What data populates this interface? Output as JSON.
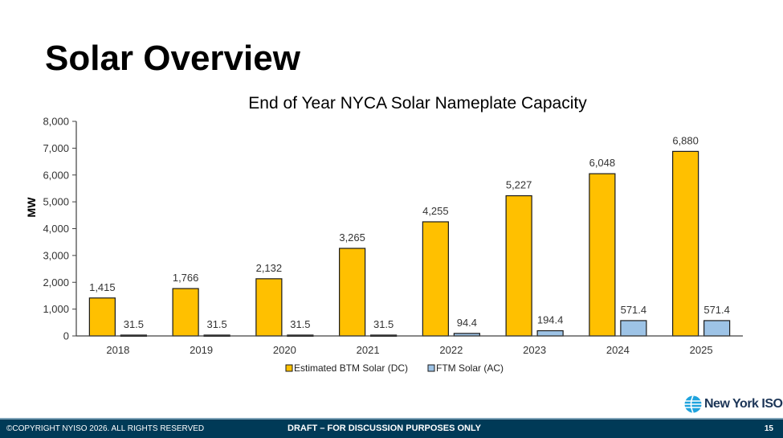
{
  "slide": {
    "title": "Solar Overview",
    "page_number": "15"
  },
  "footer": {
    "copyright": "©COPYRIGHT NYISO 2026. ALL RIGHTS RESERVED",
    "draft_notice": "DRAFT – FOR DISCUSSION PURPOSES ONLY"
  },
  "logo": {
    "text": "New York ISO",
    "icon": "globe-icon"
  },
  "colors": {
    "btm": "#ffc000",
    "ftm": "#9dc3e6",
    "footer_bg": "#003a57",
    "bar_outline": "#000000"
  },
  "chart_data": {
    "type": "bar",
    "title": "End of Year NYCA Solar Nameplate Capacity",
    "xlabel": "",
    "ylabel": "MW",
    "ylim": [
      0,
      8000
    ],
    "yticks": [
      0,
      1000,
      2000,
      3000,
      4000,
      5000,
      6000,
      7000,
      8000
    ],
    "ytick_labels": [
      "0",
      "1,000",
      "2,000",
      "3,000",
      "4,000",
      "5,000",
      "6,000",
      "7,000",
      "8,000"
    ],
    "grid": false,
    "legend_position": "bottom",
    "categories": [
      "2018",
      "2019",
      "2020",
      "2021",
      "2022",
      "2023",
      "2024",
      "2025"
    ],
    "series": [
      {
        "name": "Estimated BTM Solar (DC)",
        "color": "#ffc000",
        "values": [
          1415,
          1766,
          2132,
          3265,
          4255,
          5227,
          6048,
          6880
        ],
        "labels": [
          "1,415",
          "1,766",
          "2,132",
          "3,265",
          "4,255",
          "5,227",
          "6,048",
          "6,880"
        ]
      },
      {
        "name": "FTM Solar (AC)",
        "color": "#9dc3e6",
        "values": [
          31.5,
          31.5,
          31.5,
          31.5,
          94.4,
          194.4,
          571.4,
          571.4
        ],
        "labels": [
          "31.5",
          "31.5",
          "31.5",
          "31.5",
          "94.4",
          "194.4",
          "571.4",
          "571.4"
        ]
      }
    ]
  }
}
